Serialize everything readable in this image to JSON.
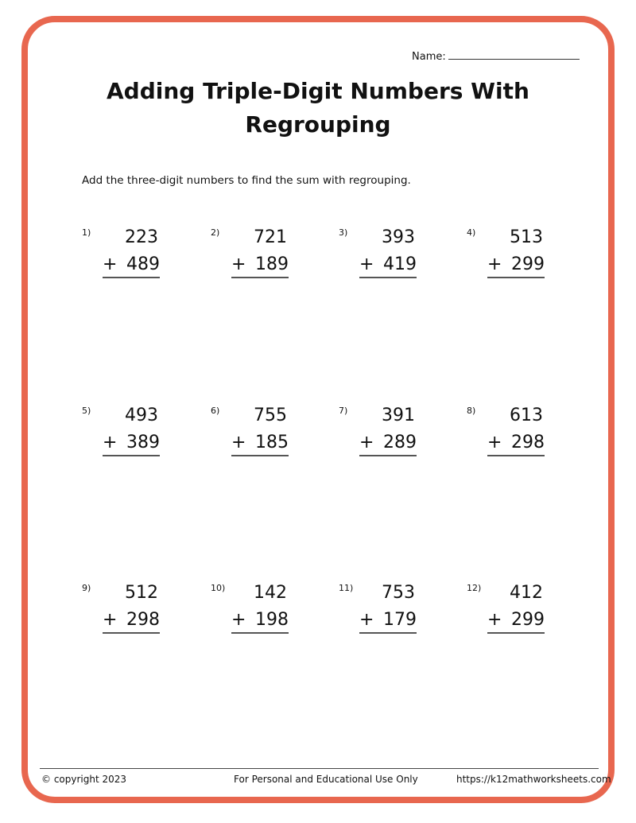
{
  "header": {
    "name_label": "Name:",
    "title": "Adding Triple-Digit Numbers With Regrouping",
    "instructions": "Add the three-digit numbers to find the sum with regrouping."
  },
  "problems": [
    {
      "label": "1)",
      "top": "223",
      "bottom": "489",
      "op": "+"
    },
    {
      "label": "2)",
      "top": "721",
      "bottom": "189",
      "op": "+"
    },
    {
      "label": "3)",
      "top": "393",
      "bottom": "419",
      "op": "+"
    },
    {
      "label": "4)",
      "top": "513",
      "bottom": "299",
      "op": "+"
    },
    {
      "label": "5)",
      "top": "493",
      "bottom": "389",
      "op": "+"
    },
    {
      "label": "6)",
      "top": "755",
      "bottom": "185",
      "op": "+"
    },
    {
      "label": "7)",
      "top": "391",
      "bottom": "289",
      "op": "+"
    },
    {
      "label": "8)",
      "top": "613",
      "bottom": "298",
      "op": "+"
    },
    {
      "label": "9)",
      "top": "512",
      "bottom": "298",
      "op": "+"
    },
    {
      "label": "10)",
      "top": "142",
      "bottom": "198",
      "op": "+"
    },
    {
      "label": "11)",
      "top": "753",
      "bottom": "179",
      "op": "+"
    },
    {
      "label": "12)",
      "top": "412",
      "bottom": "299",
      "op": "+"
    }
  ],
  "footer": {
    "copyright": "© copyright 2023",
    "notice": "For Personal and Educational Use Only",
    "url": "https://k12mathworksheets.com"
  },
  "colors": {
    "border": "#E8674F"
  }
}
